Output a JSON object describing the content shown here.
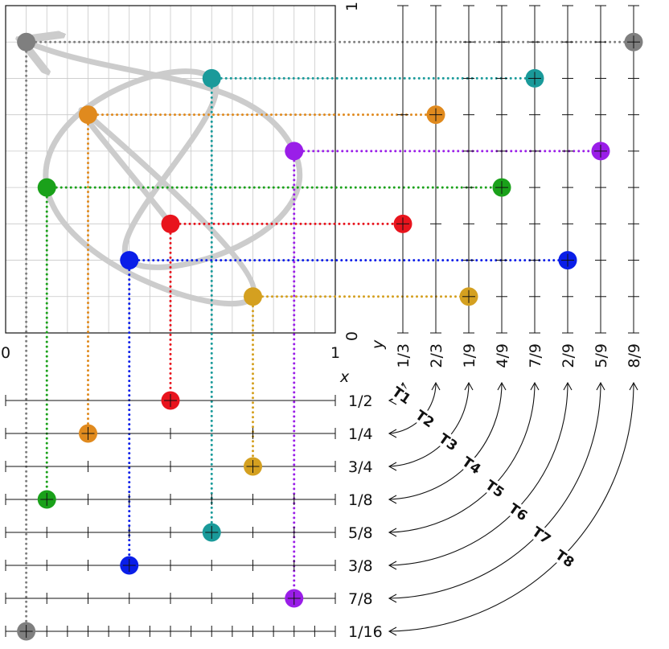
{
  "labels": {
    "x_axis": "x",
    "y_axis": "y",
    "square_x_min": "0",
    "square_x_max": "1",
    "square_y_min": "0",
    "square_y_max": "1"
  },
  "rows": [
    {
      "label": "1/2",
      "divisions": 2
    },
    {
      "label": "1/4",
      "divisions": 4
    },
    {
      "label": "3/4",
      "divisions": 4
    },
    {
      "label": "1/8",
      "divisions": 8
    },
    {
      "label": "5/8",
      "divisions": 8
    },
    {
      "label": "3/8",
      "divisions": 8
    },
    {
      "label": "7/8",
      "divisions": 8
    },
    {
      "label": "1/16",
      "divisions": 16
    }
  ],
  "columns": [
    {
      "label": "1/3",
      "divisions": 3
    },
    {
      "label": "2/3",
      "divisions": 3
    },
    {
      "label": "1/9",
      "divisions": 9
    },
    {
      "label": "4/9",
      "divisions": 9
    },
    {
      "label": "7/9",
      "divisions": 9
    },
    {
      "label": "2/9",
      "divisions": 9
    },
    {
      "label": "5/9",
      "divisions": 9
    },
    {
      "label": "8/9",
      "divisions": 9
    }
  ],
  "connectors": [
    "T1",
    "T2",
    "T3",
    "T4",
    "T5",
    "T6",
    "T7",
    "T8"
  ],
  "points": [
    {
      "x": 0.5,
      "y": 0.3333,
      "color": "#e8141d"
    },
    {
      "x": 0.25,
      "y": 0.6667,
      "color": "#e08a1e"
    },
    {
      "x": 0.75,
      "y": 0.1111,
      "color": "#d4a020"
    },
    {
      "x": 0.125,
      "y": 0.4444,
      "color": "#1aa11a"
    },
    {
      "x": 0.625,
      "y": 0.7778,
      "color": "#1a9a9a"
    },
    {
      "x": 0.375,
      "y": 0.2222,
      "color": "#0a1ee8"
    },
    {
      "x": 0.875,
      "y": 0.5556,
      "color": "#9a1ee8"
    },
    {
      "x": 0.0625,
      "y": 0.8889,
      "color": "#7f7f7f"
    }
  ],
  "colors": {
    "grid": "#c8c8c8",
    "axis": "#111111",
    "path": "#cccccc"
  }
}
